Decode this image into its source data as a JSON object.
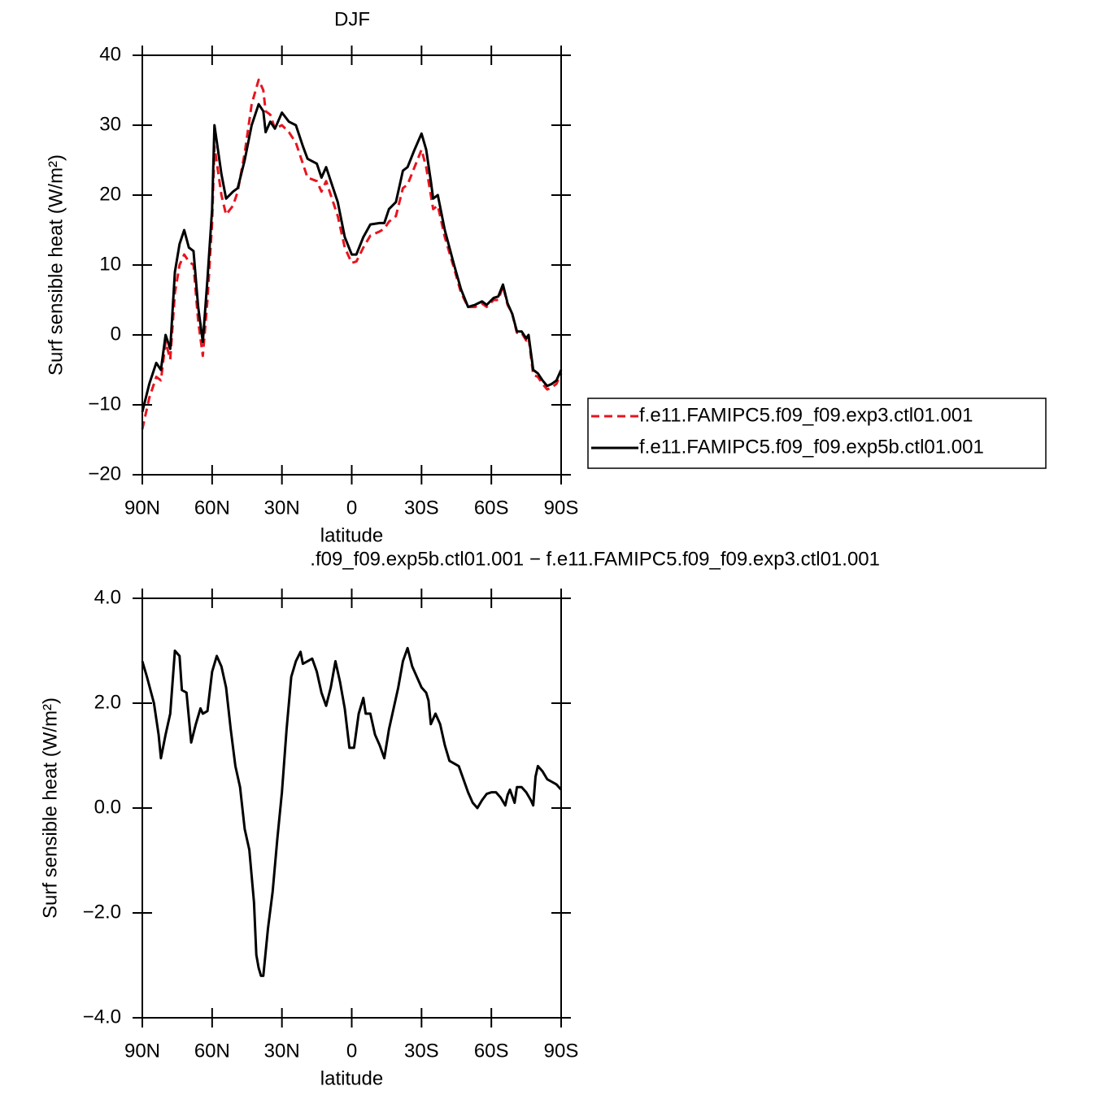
{
  "chart_data": [
    {
      "type": "line",
      "title": "DJF",
      "x_label": "latitude",
      "y_label": "Surf sensible heat (W/m²)",
      "x": [
        90,
        87,
        84,
        82,
        80,
        78,
        76,
        74,
        72,
        70,
        68,
        66,
        64,
        62,
        60,
        59,
        56,
        54,
        51,
        49,
        46,
        43,
        40,
        38,
        37,
        35,
        33,
        30,
        27,
        24,
        21,
        19,
        15,
        13,
        11,
        9,
        6,
        3,
        0,
        -2,
        -5,
        -8,
        -12,
        -14,
        -16,
        -19,
        -22,
        -24,
        -27,
        -30,
        -32,
        -34,
        -35,
        -37,
        -40,
        -44,
        -47,
        -50,
        -53,
        -56,
        -58,
        -61,
        -63,
        -65,
        -67,
        -69,
        -71,
        -73,
        -75,
        -76,
        -78,
        -80,
        -82,
        -84,
        -86,
        -88,
        -90
      ],
      "series": [
        {
          "name": "f.e11.FAMIPC5.f09_f09.exp3.ctl01.001",
          "color": "#e8141e",
          "linestyle": "dashed",
          "values": [
            -13.5,
            -9,
            -6,
            -6.5,
            -1,
            -3.5,
            6,
            10,
            11.5,
            10.5,
            10,
            2,
            -3,
            5,
            16,
            27,
            20,
            17.2,
            18.5,
            20.5,
            26,
            33,
            36.5,
            35,
            32,
            31.5,
            29.5,
            30,
            29,
            27.5,
            24.5,
            22.5,
            22,
            20.5,
            22,
            20,
            17,
            12.5,
            10.3,
            10.5,
            12.5,
            14.2,
            14.8,
            15.2,
            16.2,
            17,
            21,
            21.5,
            24,
            26.5,
            24,
            20,
            18,
            18.5,
            14,
            9.5,
            6,
            4,
            4,
            4.5,
            4,
            5,
            5,
            7,
            4.3,
            3,
            0.3,
            0.3,
            -0.8,
            -0.3,
            -5.7,
            -6,
            -7,
            -7.8,
            -7.5,
            -7,
            -5.5
          ]
        },
        {
          "name": "f.e11.FAMIPC5.f09_f09.exp5b.ctl01.001",
          "color": "#000000",
          "linestyle": "solid",
          "values": [
            -11,
            -7,
            -4,
            -5,
            0,
            -2,
            9,
            13,
            15,
            12.5,
            12,
            4,
            -1,
            8,
            18,
            30,
            23,
            19.5,
            20.5,
            21,
            25,
            30,
            33,
            32,
            29,
            30.5,
            29.5,
            31.8,
            30.5,
            30,
            27,
            25.2,
            24.5,
            22.5,
            24,
            22,
            19,
            14,
            11.5,
            11.5,
            14,
            15.8,
            16,
            16,
            18,
            19,
            23.5,
            24,
            26.5,
            28.8,
            26.5,
            22,
            19.5,
            20,
            15,
            10,
            6.5,
            4,
            4.3,
            4.8,
            4.3,
            5.3,
            5.5,
            7.2,
            4.5,
            3,
            0.5,
            0.5,
            -0.5,
            0,
            -5,
            -5.5,
            -6.5,
            -7.3,
            -7,
            -6.5,
            -5
          ]
        }
      ],
      "xlim": [
        90,
        -90
      ],
      "xticks": [
        {
          "value": 90,
          "label": "90N"
        },
        {
          "value": 60,
          "label": "60N"
        },
        {
          "value": 30,
          "label": "30N"
        },
        0,
        {
          "value": -30,
          "label": "30S"
        },
        {
          "value": -60,
          "label": "60S"
        },
        {
          "value": -90,
          "label": "90S"
        }
      ],
      "ylim": [
        -20,
        40
      ],
      "yticks": [
        {
          "value": -20,
          "label": "−20"
        },
        {
          "value": -10,
          "label": "−10"
        },
        0,
        10,
        20,
        30,
        40
      ],
      "legend": "right"
    },
    {
      "type": "line",
      "title": ".f09_f09.exp5b.ctl01.001 − f.e11.FAMIPC5.f09_f09.exp3.ctl01.001",
      "x_label": "latitude",
      "y_label": "Surf sensible heat (W/m²)",
      "x": [
        90,
        88,
        85,
        83,
        82,
        80,
        78,
        76,
        74,
        73,
        71,
        69,
        67,
        65,
        64,
        62,
        60,
        58,
        56,
        54,
        52,
        50,
        48,
        46,
        44,
        42,
        41,
        40,
        39,
        38,
        36,
        34,
        32,
        30,
        28,
        26,
        24,
        22,
        21,
        19,
        17,
        15,
        13,
        11,
        9,
        7,
        5,
        3,
        1,
        -1,
        -3,
        -5,
        -6,
        -8,
        -10,
        -12,
        -14,
        -16,
        -18,
        -20,
        -22,
        -24,
        -26,
        -28,
        -30,
        -32,
        -33,
        -34,
        -36,
        -38,
        -40,
        -42,
        -44,
        -46,
        -48,
        -50,
        -52,
        -54,
        -56,
        -58,
        -60,
        -62,
        -64,
        -66,
        -67,
        -68,
        -70,
        -71,
        -73,
        -75,
        -77,
        -78,
        -79,
        -80,
        -82,
        -84,
        -86,
        -88,
        -90
      ],
      "series": [
        {
          "color": "#000000",
          "linestyle": "solid",
          "values": [
            2.8,
            2.5,
            2.0,
            1.4,
            0.95,
            1.4,
            1.8,
            3.0,
            2.9,
            2.25,
            2.2,
            1.25,
            1.6,
            1.9,
            1.8,
            1.85,
            2.6,
            2.9,
            2.7,
            2.3,
            1.5,
            0.8,
            0.4,
            -0.4,
            -0.8,
            -1.8,
            -2.8,
            -3.05,
            -3.2,
            -3.2,
            -2.3,
            -1.6,
            -0.6,
            0.3,
            1.5,
            2.5,
            2.8,
            2.98,
            2.75,
            2.8,
            2.85,
            2.6,
            2.2,
            1.95,
            2.3,
            2.8,
            2.4,
            1.9,
            1.15,
            1.15,
            1.8,
            2.1,
            1.8,
            1.8,
            1.4,
            1.2,
            0.95,
            1.5,
            1.9,
            2.3,
            2.8,
            3.05,
            2.7,
            2.5,
            2.3,
            2.2,
            2.05,
            1.6,
            1.8,
            1.6,
            1.2,
            0.9,
            0.85,
            0.8,
            0.55,
            0.3,
            0.1,
            0.0,
            0.15,
            0.27,
            0.3,
            0.3,
            0.2,
            0.05,
            0.25,
            0.35,
            0.1,
            0.4,
            0.4,
            0.3,
            0.15,
            0.05,
            0.6,
            0.8,
            0.7,
            0.55,
            0.5,
            0.45,
            0.35
          ]
        }
      ],
      "xlim": [
        90,
        -90
      ],
      "xticks": [
        {
          "value": 90,
          "label": "90N"
        },
        {
          "value": 60,
          "label": "60N"
        },
        {
          "value": 30,
          "label": "30N"
        },
        0,
        {
          "value": -30,
          "label": "30S"
        },
        {
          "value": -60,
          "label": "60S"
        },
        {
          "value": -90,
          "label": "90S"
        }
      ],
      "ylim": [
        -4,
        4
      ],
      "yticks": [
        {
          "value": -4,
          "label": "−4.0"
        },
        {
          "value": -2,
          "label": "−2.0"
        },
        {
          "value": 0,
          "label": "0.0"
        },
        {
          "value": 2,
          "label": "2.0"
        },
        {
          "value": 4,
          "label": "4.0"
        }
      ]
    }
  ]
}
